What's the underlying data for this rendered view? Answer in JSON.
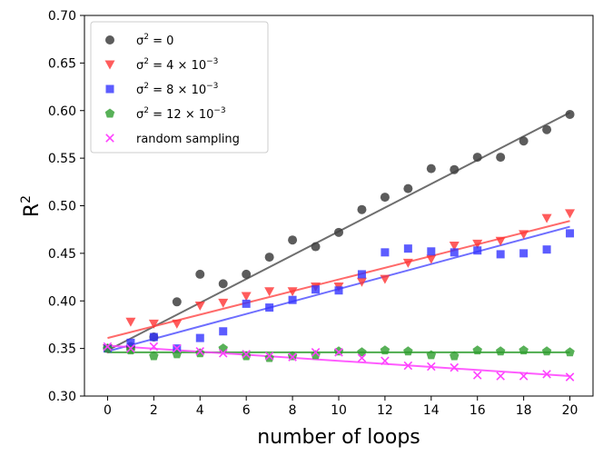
{
  "chart_data": {
    "type": "scatter",
    "title": "",
    "xlabel": "number of loops",
    "ylabel": "R²",
    "ylabel_base": "R",
    "ylabel_sup": "2",
    "xlim": [
      -1,
      21
    ],
    "ylim": [
      0.3,
      0.7
    ],
    "x_ticks": [
      0,
      2,
      4,
      6,
      8,
      10,
      12,
      14,
      16,
      18,
      20
    ],
    "y_ticks": [
      0.3,
      0.35,
      0.4,
      0.45,
      0.5,
      0.55,
      0.6,
      0.65,
      0.7
    ],
    "y_tick_labels": [
      "0.30",
      "0.35",
      "0.40",
      "0.45",
      "0.50",
      "0.55",
      "0.60",
      "0.65",
      "0.70"
    ],
    "grid": false,
    "legend_position": "top-left",
    "x": [
      0,
      1,
      2,
      3,
      4,
      5,
      6,
      7,
      8,
      9,
      10,
      11,
      12,
      13,
      14,
      15,
      16,
      17,
      18,
      19,
      20
    ],
    "series": [
      {
        "name": "σ² = 0",
        "legend_parts": {
          "base": "σ",
          "sup": "2",
          "rest": " = 0",
          "exp": ""
        },
        "marker": "circle",
        "color": "#404040",
        "line_color": "#555555",
        "values": [
          0.35,
          0.352,
          0.362,
          0.399,
          0.428,
          0.418,
          0.428,
          0.446,
          0.464,
          0.457,
          0.472,
          0.496,
          0.509,
          0.518,
          0.539,
          0.538,
          0.551,
          0.551,
          0.568,
          0.58,
          0.596
        ],
        "fit": [
          0.348,
          0.598
        ]
      },
      {
        "name": "σ² = 4 × 10⁻³",
        "legend_parts": {
          "base": "σ",
          "sup": "2",
          "rest": " = 4 × 10",
          "exp": "−3"
        },
        "marker": "triangle-down",
        "color": "#ff3333",
        "line_color": "#ff5050",
        "values": [
          0.35,
          0.378,
          0.376,
          0.376,
          0.395,
          0.398,
          0.405,
          0.41,
          0.41,
          0.415,
          0.415,
          0.42,
          0.423,
          0.44,
          0.444,
          0.458,
          0.46,
          0.463,
          0.47,
          0.487,
          0.492
        ],
        "fit": [
          0.361,
          0.484
        ]
      },
      {
        "name": "σ² = 8 × 10⁻³",
        "legend_parts": {
          "base": "σ",
          "sup": "2",
          "rest": " = 8 × 10",
          "exp": "−3"
        },
        "marker": "square",
        "color": "#3333ff",
        "line_color": "#5555ff",
        "values": [
          0.35,
          0.356,
          0.362,
          0.35,
          0.361,
          0.368,
          0.397,
          0.393,
          0.401,
          0.412,
          0.411,
          0.428,
          0.451,
          0.455,
          0.452,
          0.451,
          0.453,
          0.449,
          0.45,
          0.454,
          0.471
        ],
        "fit": [
          0.347,
          0.478
        ]
      },
      {
        "name": "σ² = 12 × 10⁻³",
        "legend_parts": {
          "base": "σ",
          "sup": "2",
          "rest": " = 12 × 10",
          "exp": "−3"
        },
        "marker": "pentagon",
        "color": "#2e9e2e",
        "line_color": "#2e9e2e",
        "values": [
          0.35,
          0.348,
          0.342,
          0.344,
          0.345,
          0.35,
          0.342,
          0.34,
          0.342,
          0.343,
          0.347,
          0.346,
          0.348,
          0.347,
          0.343,
          0.342,
          0.348,
          0.347,
          0.348,
          0.347,
          0.346
        ],
        "fit": [
          0.346,
          0.346
        ]
      },
      {
        "name": "random sampling",
        "legend_parts": {
          "base": "random sampling",
          "sup": "",
          "rest": "",
          "exp": ""
        },
        "marker": "x",
        "color": "#ff40ff",
        "line_color": "#ff40ff",
        "values": [
          0.352,
          0.35,
          0.352,
          0.35,
          0.347,
          0.345,
          0.344,
          0.342,
          0.341,
          0.346,
          0.346,
          0.34,
          0.337,
          0.332,
          0.331,
          0.33,
          0.322,
          0.321,
          0.321,
          0.323,
          0.32
        ],
        "fit": [
          0.353,
          0.321
        ]
      }
    ]
  }
}
